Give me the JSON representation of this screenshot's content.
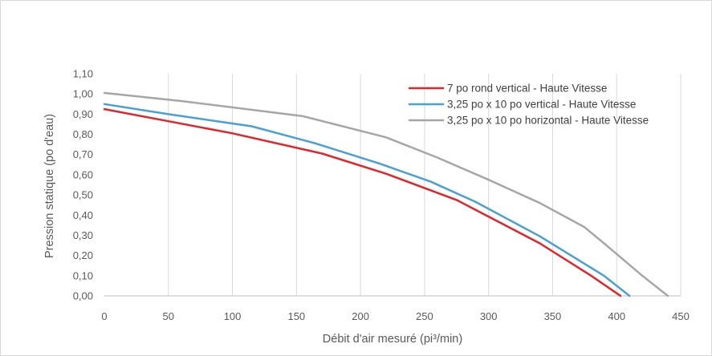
{
  "chart_data": {
    "type": "line",
    "title": "",
    "xlabel": "Débit d'air mesuré (pi³/min)",
    "ylabel": "Pression statique (po d'eau)",
    "xlim": [
      0,
      450
    ],
    "ylim": [
      0,
      1.1
    ],
    "x_ticks": [
      "0",
      "50",
      "100",
      "150",
      "200",
      "250",
      "300",
      "350",
      "400",
      "450"
    ],
    "y_ticks": [
      "0,00",
      "0,10",
      "0,20",
      "0,30",
      "0,40",
      "0,50",
      "0,60",
      "0,70",
      "0,80",
      "0,90",
      "1,00",
      "1,10"
    ],
    "grid": "vertical",
    "legend_position": "top-right",
    "series": [
      {
        "name": "7 po rond vertical - Haute Vitesse",
        "color": "#e0262a",
        "points": [
          [
            0,
            0.925
          ],
          [
            50,
            0.865
          ],
          [
            100,
            0.805
          ],
          [
            170,
            0.705
          ],
          [
            220,
            0.605
          ],
          [
            275,
            0.475
          ],
          [
            340,
            0.26
          ],
          [
            380,
            0.1
          ],
          [
            403,
            0.0
          ]
        ]
      },
      {
        "name": "3,25 po x 10 po vertical - Haute Vitesse",
        "color": "#4a9fd6",
        "points": [
          [
            0,
            0.95
          ],
          [
            50,
            0.9
          ],
          [
            115,
            0.84
          ],
          [
            165,
            0.755
          ],
          [
            215,
            0.655
          ],
          [
            255,
            0.565
          ],
          [
            290,
            0.465
          ],
          [
            340,
            0.295
          ],
          [
            390,
            0.1
          ],
          [
            410,
            0.0
          ]
        ]
      },
      {
        "name": "3,25 po x 10 po horizontal - Haute Vitesse",
        "color": "#a6a6a6",
        "points": [
          [
            0,
            1.005
          ],
          [
            60,
            0.965
          ],
          [
            155,
            0.89
          ],
          [
            220,
            0.785
          ],
          [
            260,
            0.685
          ],
          [
            300,
            0.575
          ],
          [
            340,
            0.46
          ],
          [
            375,
            0.34
          ],
          [
            392,
            0.25
          ],
          [
            420,
            0.1
          ],
          [
            440,
            0.0
          ]
        ]
      }
    ]
  }
}
